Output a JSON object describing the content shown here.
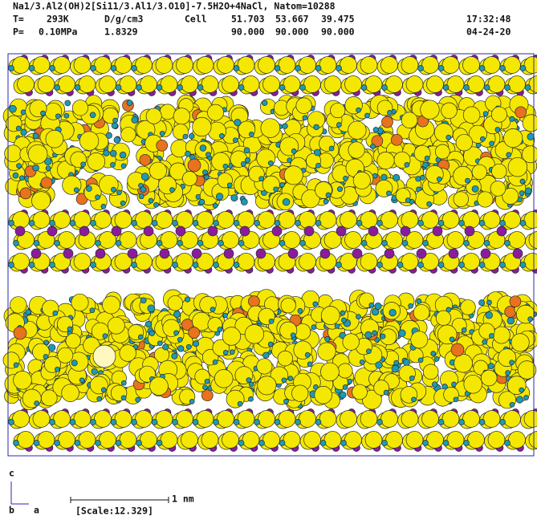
{
  "header": {
    "title": "Na1/3.Al2(OH)2[Si11/3.Al1/3.O10]-7.5H2O+4NaCl, Natom=10288",
    "row1": {
      "t_label": "T=",
      "t_value": "293K",
      "d_label": "D/g/cm3",
      "cell_label": "Cell",
      "cell_a": "51.703",
      "cell_b": "53.667",
      "cell_c": "39.475",
      "time": "17:32:48"
    },
    "row2": {
      "p_label": "P=",
      "p_value": "0.10MPa",
      "d_value": "1.8329",
      "alpha": "90.000",
      "beta": "90.000",
      "gamma": "90.000",
      "date": "04-24-20"
    }
  },
  "axes": {
    "c": "c",
    "b": "b",
    "a": "a"
  },
  "scale_bar": {
    "length_label": "1 nm",
    "scale": "[Scale:12.329]"
  }
}
